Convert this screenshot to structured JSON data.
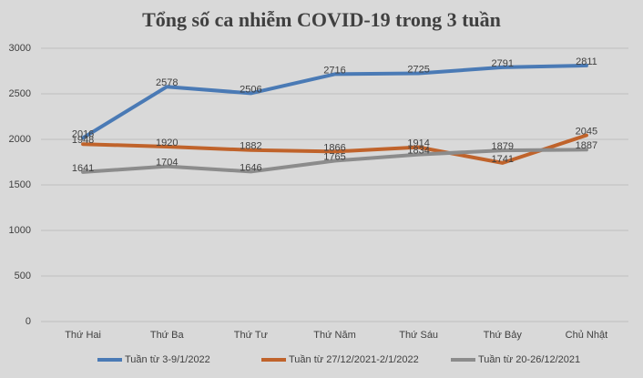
{
  "chart_data": {
    "type": "line",
    "title": "Tổng số ca nhiễm COVID-19 trong 3 tuần",
    "categories": [
      "Thứ Hai",
      "Thứ Ba",
      "Thứ Tư",
      "Thứ Năm",
      "Thứ Sáu",
      "Thứ Bảy",
      "Chủ Nhật"
    ],
    "series": [
      {
        "name": "Tuần từ 3-9/1/2022",
        "color": "#4a7ab5",
        "values": [
          2016,
          2578,
          2506,
          2716,
          2725,
          2791,
          2811
        ]
      },
      {
        "name": "Tuần từ 27/12/2021-2/1/2022",
        "color": "#c0632b",
        "values": [
          1948,
          1920,
          1882,
          1866,
          1914,
          1741,
          2045
        ]
      },
      {
        "name": "Tuần từ 20-26/12/2021",
        "color": "#8c8c8c",
        "values": [
          1641,
          1704,
          1646,
          1765,
          1834,
          1879,
          1887
        ]
      }
    ],
    "ylim": [
      0,
      3000
    ],
    "yticks": [
      0,
      500,
      1000,
      1500,
      2000,
      2500,
      3000
    ],
    "grid": true,
    "legend": "bottom"
  }
}
